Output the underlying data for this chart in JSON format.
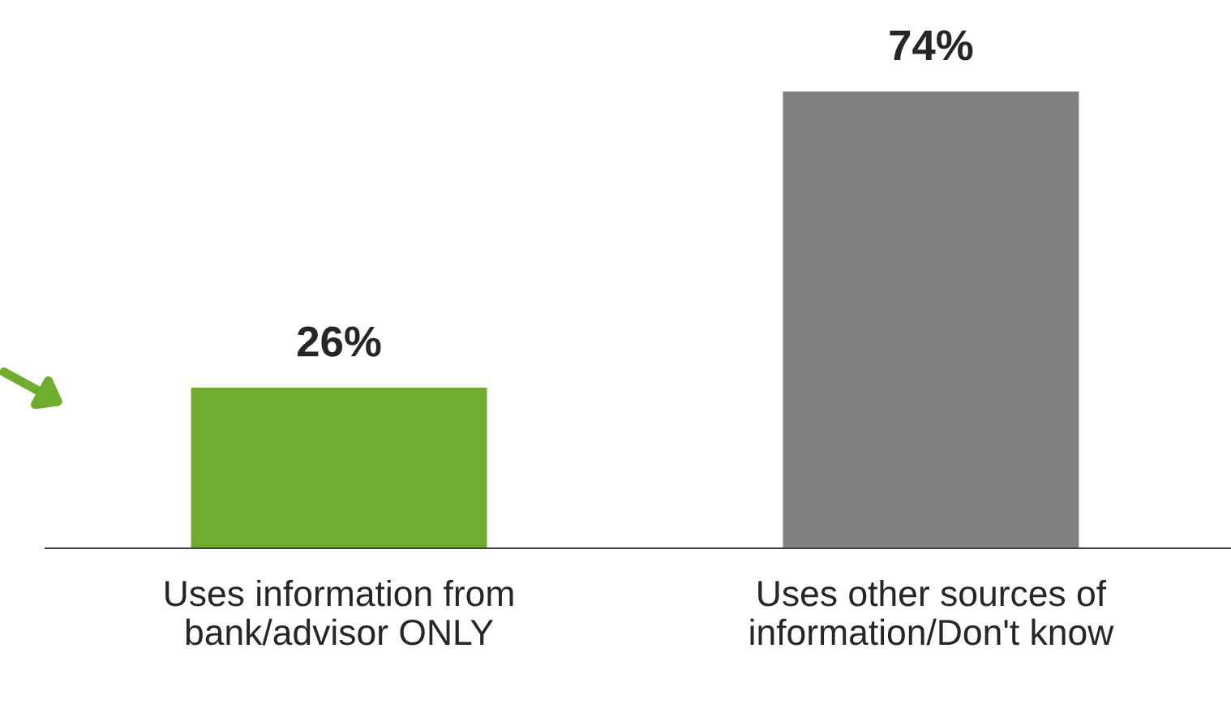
{
  "chart_data": {
    "type": "bar",
    "categories": [
      "Uses information from\nbank/advisor ONLY",
      "Uses other sources of\ninformation/Don't know"
    ],
    "values": [
      26,
      74
    ],
    "colors": [
      "#70ad2f",
      "#808080"
    ],
    "value_labels": [
      "26%",
      "74%"
    ],
    "grid": false,
    "legend": false
  }
}
